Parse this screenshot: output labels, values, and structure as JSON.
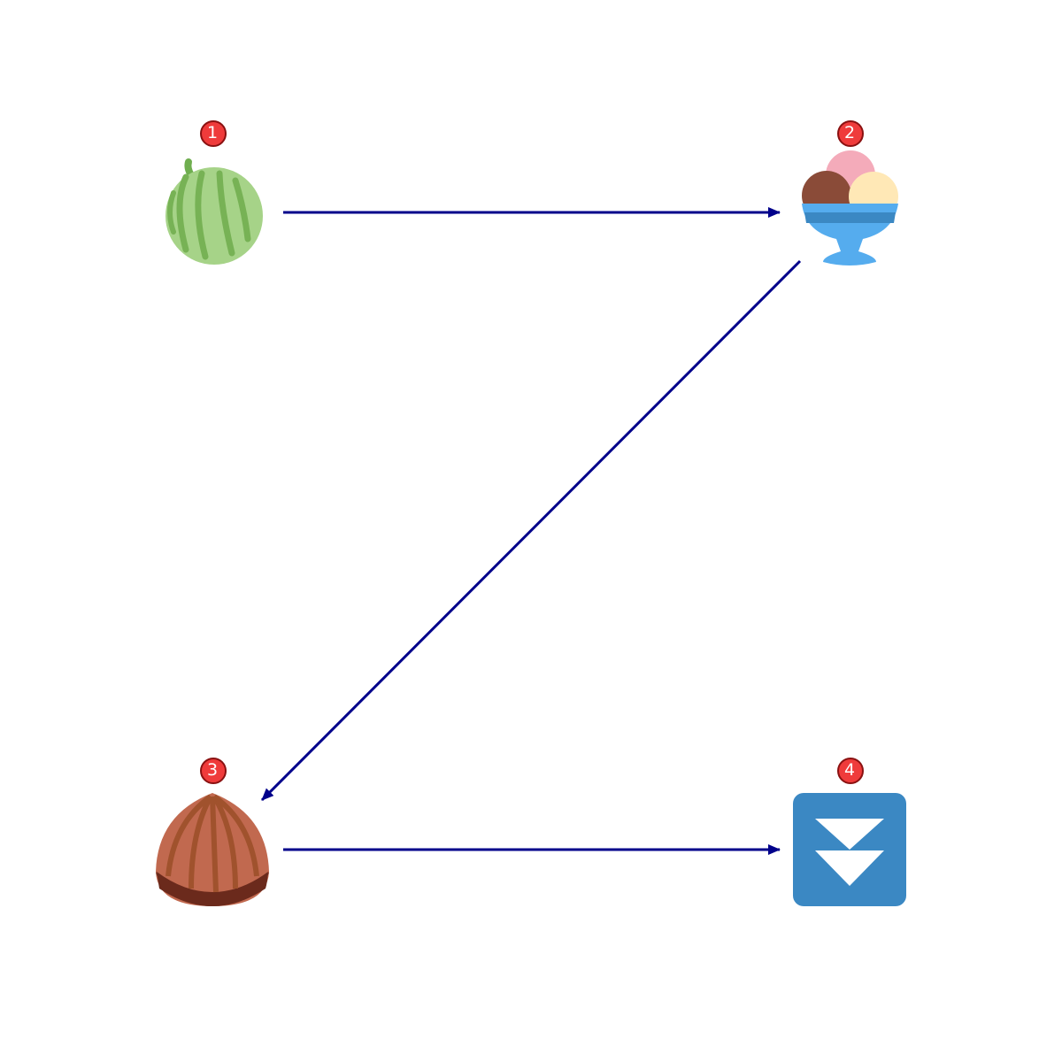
{
  "colors": {
    "arrow": "#00008b",
    "badge_fill": "#ef3b3b",
    "badge_stroke": "#8a1111",
    "badge_text": "#ffffff",
    "background": "#ffffff"
  },
  "nodes": [
    {
      "id": "n1",
      "badge": "1",
      "icon": "melon-icon"
    },
    {
      "id": "n2",
      "badge": "2",
      "icon": "ice-cream-icon"
    },
    {
      "id": "n3",
      "badge": "3",
      "icon": "chestnut-icon"
    },
    {
      "id": "n4",
      "badge": "4",
      "icon": "fast-down-button-icon"
    }
  ],
  "edges": [
    {
      "from": "1",
      "to": "2"
    },
    {
      "from": "2",
      "to": "3"
    },
    {
      "from": "3",
      "to": "4"
    }
  ]
}
